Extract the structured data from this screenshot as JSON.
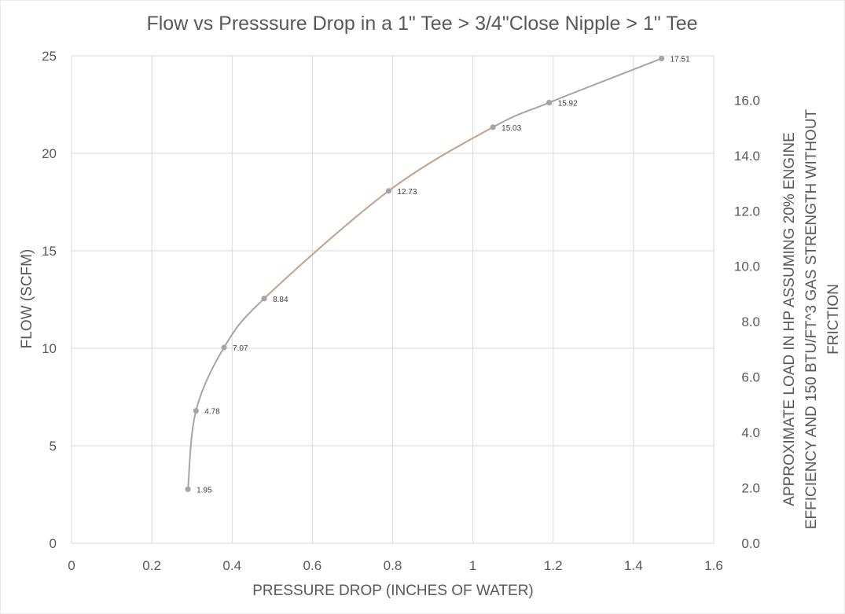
{
  "chart_data": {
    "type": "scatter",
    "title": "Flow vs Presssure Drop in a 1\" Tee > 3/4\"Close Nipple > 1\" Tee",
    "xlabel": "PRESSURE DROP (INCHES OF WATER)",
    "ylabel": "FLOW (SCFM)",
    "y2label_line1": "APPROXIMATE LOAD IN HP ASSUMING 20% ENGINE",
    "y2label_line2": "EFFICIENCY AND 150 BTU/FT^3 GAS STRENGTH WITHOUT",
    "y2label_line3": "FRICTION",
    "xlim": [
      0,
      1.6
    ],
    "ylim": [
      0,
      25
    ],
    "y2lim": [
      0,
      17.6
    ],
    "xticks": [
      "0",
      "0.2",
      "0.4",
      "0.6",
      "0.8",
      "1",
      "1.2",
      "1.4",
      "1.6"
    ],
    "xtick_values": [
      0,
      0.2,
      0.4,
      0.6,
      0.8,
      1.0,
      1.2,
      1.4,
      1.6
    ],
    "yticks": [
      "0",
      "5",
      "10",
      "15",
      "20",
      "25"
    ],
    "ytick_values": [
      0,
      5,
      10,
      15,
      20,
      25
    ],
    "y2ticks": [
      "0.0",
      "2.0",
      "4.0",
      "6.0",
      "8.0",
      "10.0",
      "12.0",
      "14.0",
      "16.0"
    ],
    "y2tick_values": [
      0,
      2,
      4,
      6,
      8,
      10,
      12,
      14,
      16
    ],
    "grid": true,
    "smooth_line": true,
    "colors": {
      "line": "#a5a5a5",
      "marker": "#a5a5a5",
      "highlight": "#c9a58c",
      "grid": "#d9d9d9",
      "text": "#595959"
    },
    "series": [
      {
        "x": [
          0.29,
          0.31,
          0.38,
          0.48,
          0.79,
          1.05,
          1.19,
          1.47
        ],
        "y": [
          2.77,
          6.79,
          10.04,
          12.55,
          18.07,
          21.34,
          22.6,
          24.86
        ],
        "labels": [
          "1.95",
          "4.78",
          "7.07",
          "8.84",
          "12.73",
          "15.03",
          "15.92",
          "17.51"
        ]
      }
    ],
    "highlight_segment": {
      "from_x": 0.48,
      "to_x": 1.05
    }
  }
}
